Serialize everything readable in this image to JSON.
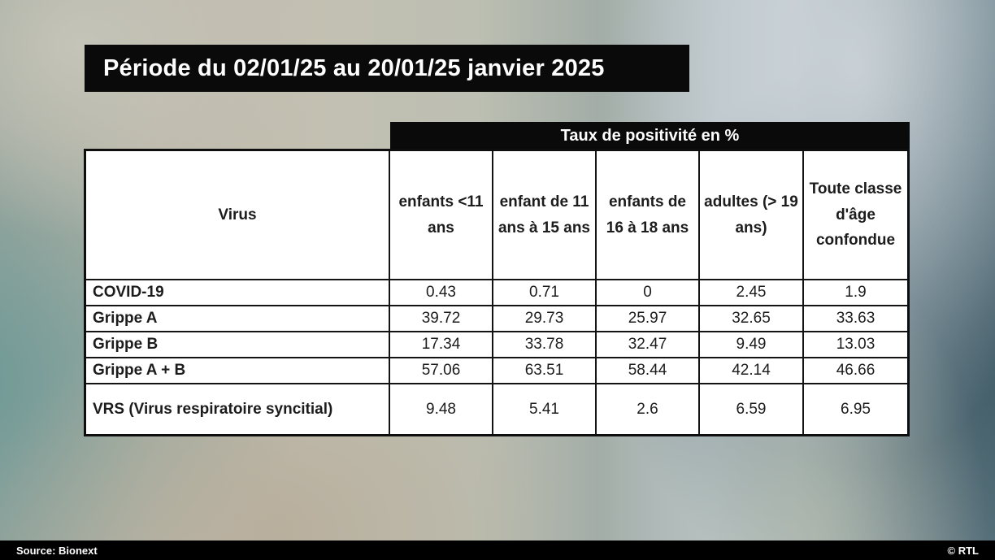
{
  "title_banner": "Période du 02/01/25 au 20/01/25 janvier 2025",
  "table": {
    "header_bar": "Taux de positivité en %",
    "columns": [
      "Virus",
      "enfants <11 ans",
      "enfant de 11 ans à 15 ans",
      "enfants de 16 à 18 ans",
      "adultes (> 19 ans)",
      "Toute classe d'âge confondue"
    ],
    "rows": [
      {
        "label": "COVID-19",
        "values": [
          "0.43",
          "0.71",
          "0",
          "2.45",
          "1.9"
        ]
      },
      {
        "label": "Grippe A",
        "values": [
          "39.72",
          "29.73",
          "25.97",
          "32.65",
          "33.63"
        ]
      },
      {
        "label": "Grippe B",
        "values": [
          "17.34",
          "33.78",
          "32.47",
          "9.49",
          "13.03"
        ]
      },
      {
        "label": "Grippe A + B",
        "values": [
          "57.06",
          "63.51",
          "58.44",
          "42.14",
          "46.66"
        ]
      },
      {
        "label": "VRS (Virus respiratoire syncitial)",
        "values": [
          "9.48",
          "5.41",
          "2.6",
          "6.59",
          "6.95"
        ]
      }
    ]
  },
  "footer": {
    "source": "Source: Bionext",
    "copyright": "© RTL"
  },
  "colors": {
    "banner_bg": "#0a0a0a",
    "banner_text": "#ffffff",
    "table_border": "#131313",
    "cell_bg": "#ffffff",
    "cell_text": "#1c1c1c",
    "footer_bg": "#000000"
  },
  "chart_data": {
    "type": "table",
    "title": "Taux de positivité en %",
    "subtitle": "Période du 02/01/25 au 20/01/25 janvier 2025",
    "columns": [
      "Virus",
      "enfants <11 ans",
      "enfant de 11 ans à 15 ans",
      "enfants de 16 à 18 ans",
      "adultes (> 19 ans)",
      "Toute classe d'âge confondue"
    ],
    "rows": [
      [
        "COVID-19",
        0.43,
        0.71,
        0,
        2.45,
        1.9
      ],
      [
        "Grippe A",
        39.72,
        29.73,
        25.97,
        32.65,
        33.63
      ],
      [
        "Grippe B",
        17.34,
        33.78,
        32.47,
        9.49,
        13.03
      ],
      [
        "Grippe A + B",
        57.06,
        63.51,
        58.44,
        42.14,
        46.66
      ],
      [
        "VRS (Virus respiratoire syncitial)",
        9.48,
        5.41,
        2.6,
        6.59,
        6.95
      ]
    ],
    "source": "Bionext",
    "unit": "%"
  }
}
